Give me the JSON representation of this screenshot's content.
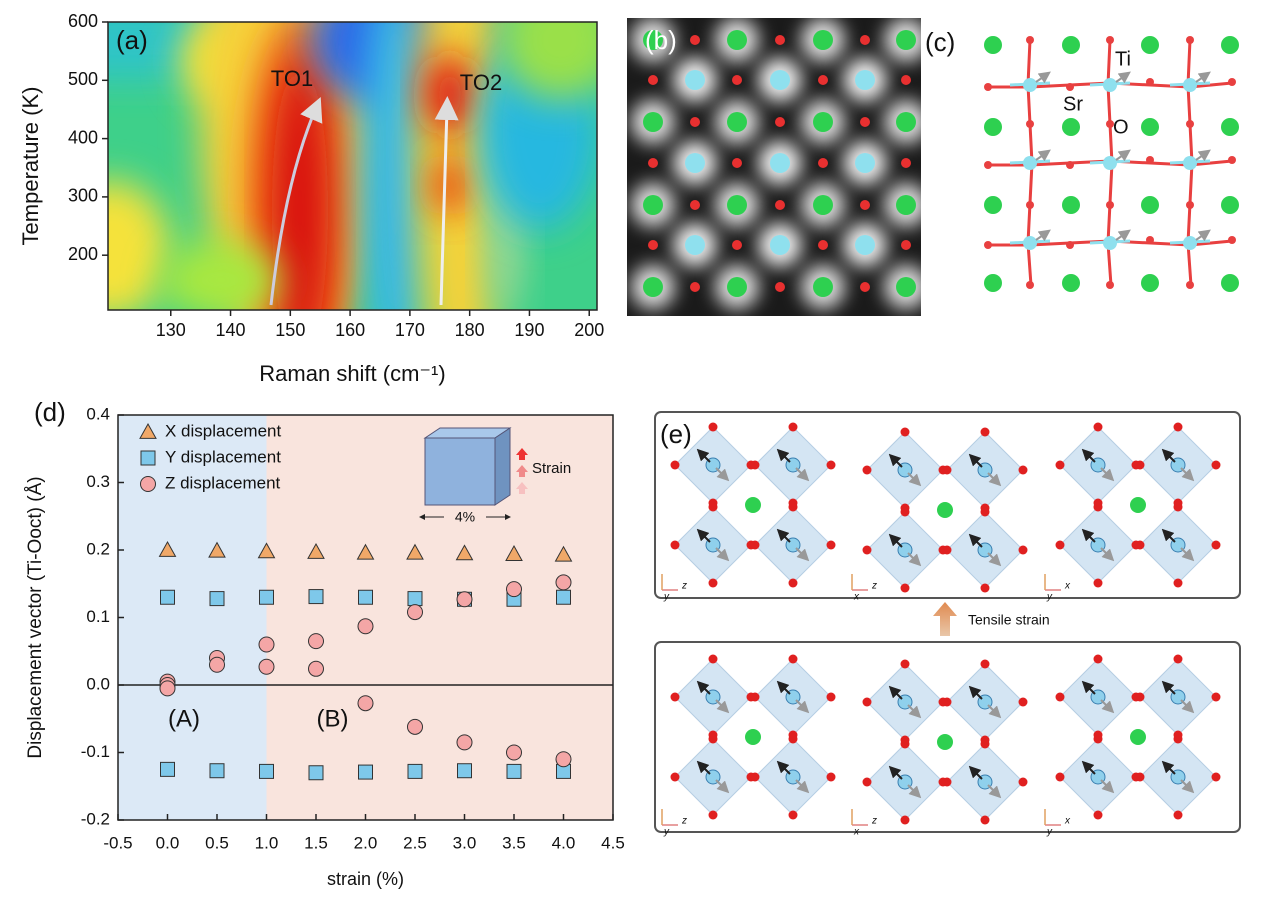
{
  "chart_data": [
    {
      "type": "contour",
      "panel": "(a)",
      "x_label": "Raman shift (cm⁻¹)",
      "y_label": "Temperature (K)",
      "xlim": [
        119.5,
        201.3
      ],
      "xticks": [
        130,
        140,
        150,
        160,
        170,
        180,
        190,
        200
      ],
      "ylim": [
        106,
        600
      ],
      "yticks": [
        200,
        300,
        400,
        500,
        600
      ],
      "annotations": [
        "TO1",
        "TO2"
      ]
    },
    {
      "type": "scatter",
      "panel": "(d)",
      "x_label": "strain (%)",
      "y_label": "Displacement vector (Ti-Ooct) (Å)",
      "xlim": [
        -0.5,
        4.5
      ],
      "xticks": [
        -0.5,
        {
          "value": 0,
          "label": "0.0"
        },
        0.5,
        {
          "value": 1,
          "label": "1.0"
        },
        1.5,
        {
          "value": 2,
          "label": "2.0"
        },
        2.5,
        {
          "value": 3,
          "label": "3.0"
        },
        3.5,
        {
          "value": 4,
          "label": "4.0"
        },
        4.5
      ],
      "ylim": [
        -0.2,
        0.4
      ],
      "yticks": [
        -0.2,
        -0.1,
        {
          "value": 0,
          "label": "0.0"
        },
        0.1,
        0.2,
        0.3,
        0.4
      ],
      "legend": "upper left",
      "regions": [
        {
          "label": "(A)",
          "from": -0.5,
          "to": 1,
          "color": "#dce9f6"
        },
        {
          "label": "(B)",
          "from": 1,
          "to": 4.5,
          "color": "#f9e4dd"
        }
      ],
      "inset": {
        "label": "Strain",
        "width_label": "4%"
      },
      "series": [
        {
          "name": "X displacement",
          "color": "#f0a868",
          "marker": "triangle",
          "x": [
            0,
            0.5,
            1,
            1.5,
            2,
            2.5,
            3,
            3.5,
            4
          ],
          "values": [
            0.2,
            0.199,
            0.198,
            0.197,
            0.196,
            0.196,
            0.195,
            0.194,
            0.193
          ]
        },
        {
          "name": "Y displacement",
          "color": "#7ec8ea",
          "marker": "square",
          "x": [
            0,
            0.5,
            1,
            1.5,
            2,
            2.5,
            3,
            3.5,
            4,
            0,
            0.5,
            1,
            1.5,
            2,
            2.5,
            3,
            3.5,
            4
          ],
          "values": [
            0.13,
            0.128,
            0.13,
            0.131,
            0.13,
            0.128,
            0.127,
            0.127,
            0.13,
            -0.125,
            -0.127,
            -0.128,
            -0.13,
            -0.129,
            -0.128,
            -0.127,
            -0.128,
            -0.128
          ]
        },
        {
          "name": "Z displacement",
          "color": "#f4a6a6",
          "marker": "circle",
          "x": [
            0,
            0,
            0,
            0.5,
            0.5,
            1,
            1,
            1.5,
            1.5,
            2,
            2,
            2.5,
            2.5,
            3,
            3,
            3.5,
            3.5,
            4,
            4
          ],
          "values": [
            0.005,
            0,
            -0.005,
            0.04,
            0.03,
            0.06,
            0.027,
            0.065,
            0.024,
            0.087,
            -0.027,
            0.108,
            -0.062,
            0.127,
            -0.085,
            0.142,
            -0.1,
            0.152,
            -0.11
          ]
        }
      ]
    }
  ],
  "panel_b": {
    "label": "(b)"
  },
  "panel_c": {
    "label": "(c)",
    "atoms": [
      "Ti",
      "Sr",
      "O"
    ]
  },
  "panel_e": {
    "label": "(e)",
    "arrow_label": "Tensile strain",
    "axes": [
      [
        "z",
        "y"
      ],
      [
        "z",
        "x"
      ],
      [
        "x",
        "y"
      ],
      [
        "z",
        "y"
      ],
      [
        "z",
        "x"
      ],
      [
        "x",
        "y"
      ]
    ]
  }
}
